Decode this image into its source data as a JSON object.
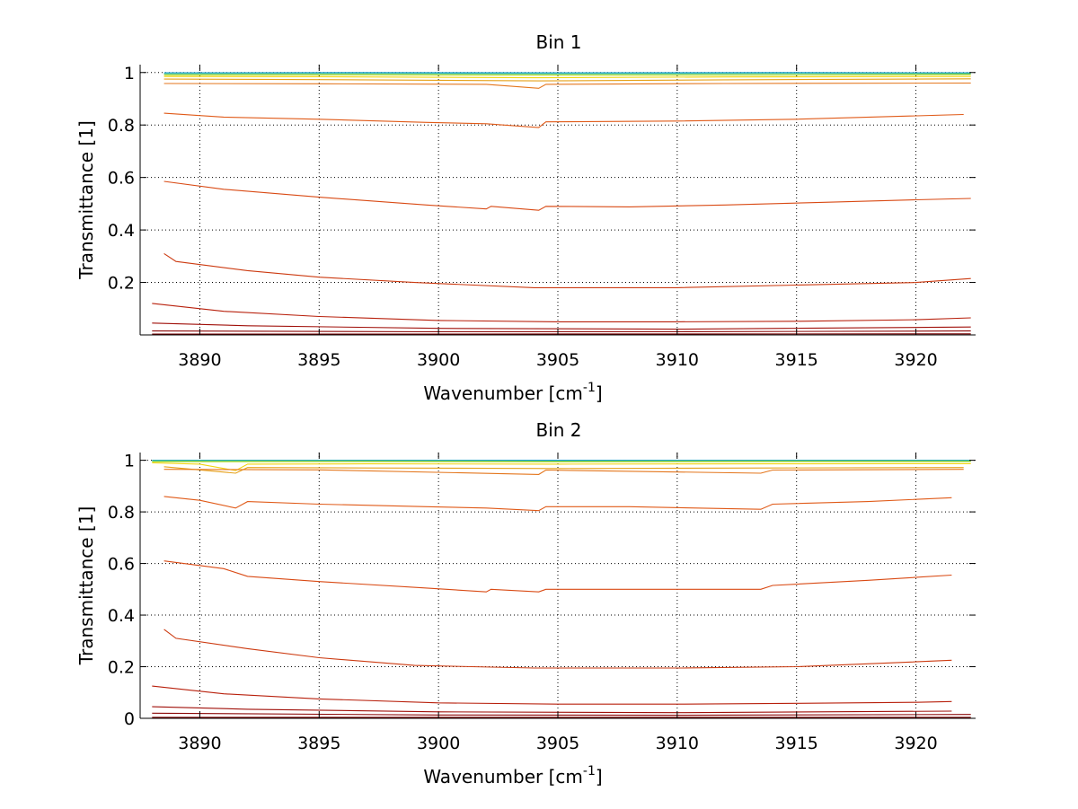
{
  "chart_data": [
    {
      "type": "line",
      "title": "Bin 1",
      "xlabel": "Wavenumber [cm",
      "xlabel_sup": "-1",
      "xlabel_end": "]",
      "ylabel": "Transmittance [1]",
      "xlim": [
        3887.5,
        3922.5
      ],
      "ylim": [
        0,
        1.03
      ],
      "xticks": [
        3890,
        3895,
        3900,
        3905,
        3910,
        3915,
        3920
      ],
      "yticks": [
        0.2,
        0.4,
        0.6,
        0.8,
        1
      ],
      "grid": true,
      "series": [
        {
          "color": "#1f9fd8",
          "points": [
            [
              3888.5,
              0.999
            ],
            [
              3897,
              1.0
            ],
            [
              3905,
              0.999
            ],
            [
              3914,
              1.0
            ],
            [
              3922.3,
              0.999
            ]
          ]
        },
        {
          "color": "#39c27a",
          "points": [
            [
              3888.5,
              0.995
            ],
            [
              3897,
              0.996
            ],
            [
              3905,
              0.995
            ],
            [
              3914,
              0.996
            ],
            [
              3922.3,
              0.996
            ]
          ]
        },
        {
          "color": "#b8d92a",
          "points": [
            [
              3888.5,
              0.99
            ],
            [
              3897,
              0.991
            ],
            [
              3905,
              0.99
            ],
            [
              3914,
              0.99
            ],
            [
              3922.3,
              0.992
            ]
          ]
        },
        {
          "color": "#f2d410",
          "points": [
            [
              3888.5,
              0.985
            ],
            [
              3895,
              0.984
            ],
            [
              3904,
              0.98
            ],
            [
              3912,
              0.983
            ],
            [
              3922.3,
              0.985
            ]
          ]
        },
        {
          "color": "#e6a11a",
          "points": [
            [
              3888.5,
              0.975
            ],
            [
              3895,
              0.973
            ],
            [
              3904.2,
              0.968
            ],
            [
              3912,
              0.972
            ],
            [
              3922.3,
              0.976
            ]
          ]
        },
        {
          "color": "#e4761c",
          "points": [
            [
              3888.5,
              0.958
            ],
            [
              3895,
              0.957
            ],
            [
              3902,
              0.955
            ],
            [
              3904.2,
              0.94
            ],
            [
              3904.5,
              0.955
            ],
            [
              3912,
              0.958
            ],
            [
              3922.3,
              0.96
            ]
          ]
        },
        {
          "color": "#e05a18",
          "points": [
            [
              3888.5,
              0.845
            ],
            [
              3891,
              0.83
            ],
            [
              3895,
              0.822
            ],
            [
              3899.5,
              0.81
            ],
            [
              3902,
              0.805
            ],
            [
              3904.2,
              0.79
            ],
            [
              3904.5,
              0.812
            ],
            [
              3910,
              0.815
            ],
            [
              3915,
              0.822
            ],
            [
              3922,
              0.84
            ]
          ]
        },
        {
          "color": "#d94a14",
          "points": [
            [
              3888.5,
              0.585
            ],
            [
              3891,
              0.555
            ],
            [
              3895,
              0.525
            ],
            [
              3899.5,
              0.495
            ],
            [
              3902,
              0.48
            ],
            [
              3902.2,
              0.49
            ],
            [
              3904.2,
              0.475
            ],
            [
              3904.5,
              0.49
            ],
            [
              3908,
              0.488
            ],
            [
              3912,
              0.495
            ],
            [
              3916,
              0.505
            ],
            [
              3920,
              0.515
            ],
            [
              3922.3,
              0.52
            ]
          ]
        },
        {
          "color": "#cc3a10",
          "points": [
            [
              3888.5,
              0.31
            ],
            [
              3889,
              0.28
            ],
            [
              3892,
              0.245
            ],
            [
              3895,
              0.22
            ],
            [
              3899,
              0.2
            ],
            [
              3904,
              0.18
            ],
            [
              3910,
              0.18
            ],
            [
              3915,
              0.19
            ],
            [
              3920,
              0.2
            ],
            [
              3922.3,
              0.215
            ]
          ]
        },
        {
          "color": "#b8200c",
          "points": [
            [
              3888,
              0.12
            ],
            [
              3891,
              0.09
            ],
            [
              3895,
              0.07
            ],
            [
              3900,
              0.055
            ],
            [
              3905,
              0.05
            ],
            [
              3910,
              0.05
            ],
            [
              3915,
              0.052
            ],
            [
              3920,
              0.058
            ],
            [
              3922.3,
              0.065
            ]
          ]
        },
        {
          "color": "#a0100a",
          "points": [
            [
              3888,
              0.045
            ],
            [
              3892,
              0.035
            ],
            [
              3900,
              0.025
            ],
            [
              3910,
              0.022
            ],
            [
              3922.3,
              0.03
            ]
          ]
        },
        {
          "color": "#8c0808",
          "points": [
            [
              3888,
              0.015
            ],
            [
              3900,
              0.012
            ],
            [
              3910,
              0.012
            ],
            [
              3922.3,
              0.015
            ]
          ]
        },
        {
          "color": "#7a0000",
          "points": [
            [
              3888,
              0.003
            ],
            [
              3922.3,
              0.004
            ]
          ]
        }
      ]
    },
    {
      "type": "line",
      "title": "Bin 2",
      "xlabel": "Wavenumber [cm",
      "xlabel_sup": "-1",
      "xlabel_end": "]",
      "ylabel": "Transmittance [1]",
      "xlim": [
        3887.5,
        3922.5
      ],
      "ylim": [
        0,
        1.03
      ],
      "xticks": [
        3890,
        3895,
        3900,
        3905,
        3910,
        3915,
        3920
      ],
      "yticks": [
        0,
        0.2,
        0.4,
        0.6,
        0.8,
        1
      ],
      "grid": true,
      "series": [
        {
          "color": "#1f9fd8",
          "points": [
            [
              3888,
              1.0
            ],
            [
              3897,
              1.0
            ],
            [
              3905,
              1.0
            ],
            [
              3914,
              1.0
            ],
            [
              3922.3,
              1.0
            ]
          ]
        },
        {
          "color": "#39c27a",
          "points": [
            [
              3888,
              0.998
            ],
            [
              3897,
              0.998
            ],
            [
              3905,
              0.997
            ],
            [
              3914,
              0.998
            ],
            [
              3922.3,
              0.998
            ]
          ]
        },
        {
          "color": "#b8d92a",
          "points": [
            [
              3888,
              0.994
            ],
            [
              3897,
              0.995
            ],
            [
              3905,
              0.994
            ],
            [
              3914,
              0.995
            ],
            [
              3922.3,
              0.995
            ]
          ]
        },
        {
          "color": "#f2d410",
          "points": [
            [
              3888,
              0.99
            ],
            [
              3890,
              0.985
            ],
            [
              3891.5,
              0.96
            ],
            [
              3892,
              0.985
            ],
            [
              3897,
              0.986
            ],
            [
              3905,
              0.985
            ],
            [
              3914,
              0.986
            ],
            [
              3922.3,
              0.987
            ]
          ]
        },
        {
          "color": "#e6a11a",
          "points": [
            [
              3888.5,
              0.975
            ],
            [
              3891.5,
              0.95
            ],
            [
              3892,
              0.972
            ],
            [
              3897,
              0.97
            ],
            [
              3905,
              0.968
            ],
            [
              3914,
              0.97
            ],
            [
              3922,
              0.972
            ]
          ]
        },
        {
          "color": "#e4761c",
          "points": [
            [
              3888.5,
              0.965
            ],
            [
              3895,
              0.963
            ],
            [
              3904.2,
              0.945
            ],
            [
              3904.5,
              0.962
            ],
            [
              3913.5,
              0.95
            ],
            [
              3914,
              0.962
            ],
            [
              3922,
              0.965
            ]
          ]
        },
        {
          "color": "#e05a18",
          "points": [
            [
              3888.5,
              0.86
            ],
            [
              3890,
              0.845
            ],
            [
              3891.5,
              0.815
            ],
            [
              3892,
              0.84
            ],
            [
              3895,
              0.83
            ],
            [
              3899.5,
              0.82
            ],
            [
              3902,
              0.815
            ],
            [
              3904.2,
              0.805
            ],
            [
              3904.5,
              0.82
            ],
            [
              3908,
              0.82
            ],
            [
              3913.5,
              0.81
            ],
            [
              3914,
              0.83
            ],
            [
              3918,
              0.84
            ],
            [
              3921.5,
              0.855
            ]
          ]
        },
        {
          "color": "#d94a14",
          "points": [
            [
              3888.5,
              0.61
            ],
            [
              3891,
              0.58
            ],
            [
              3892,
              0.55
            ],
            [
              3895,
              0.53
            ],
            [
              3899.5,
              0.505
            ],
            [
              3902,
              0.49
            ],
            [
              3902.2,
              0.5
            ],
            [
              3904.2,
              0.49
            ],
            [
              3904.5,
              0.5
            ],
            [
              3908,
              0.5
            ],
            [
              3913.5,
              0.5
            ],
            [
              3914,
              0.515
            ],
            [
              3918,
              0.535
            ],
            [
              3921.5,
              0.555
            ]
          ]
        },
        {
          "color": "#cc3a10",
          "points": [
            [
              3888.5,
              0.345
            ],
            [
              3889,
              0.31
            ],
            [
              3892,
              0.27
            ],
            [
              3895,
              0.235
            ],
            [
              3899,
              0.205
            ],
            [
              3904,
              0.195
            ],
            [
              3910,
              0.195
            ],
            [
              3915,
              0.2
            ],
            [
              3919,
              0.215
            ],
            [
              3921.5,
              0.225
            ]
          ]
        },
        {
          "color": "#b8200c",
          "points": [
            [
              3888,
              0.125
            ],
            [
              3891,
              0.095
            ],
            [
              3895,
              0.075
            ],
            [
              3900,
              0.06
            ],
            [
              3905,
              0.055
            ],
            [
              3910,
              0.055
            ],
            [
              3915,
              0.058
            ],
            [
              3920,
              0.062
            ],
            [
              3921.5,
              0.065
            ]
          ]
        },
        {
          "color": "#a0100a",
          "points": [
            [
              3888,
              0.045
            ],
            [
              3892,
              0.035
            ],
            [
              3900,
              0.025
            ],
            [
              3910,
              0.022
            ],
            [
              3921.5,
              0.028
            ]
          ]
        },
        {
          "color": "#8c0808",
          "points": [
            [
              3888,
              0.02
            ],
            [
              3900,
              0.013
            ],
            [
              3910,
              0.012
            ],
            [
              3922.3,
              0.015
            ]
          ]
        },
        {
          "color": "#7a0000",
          "points": [
            [
              3888,
              0.004
            ],
            [
              3922.3,
              0.004
            ]
          ]
        }
      ]
    }
  ]
}
